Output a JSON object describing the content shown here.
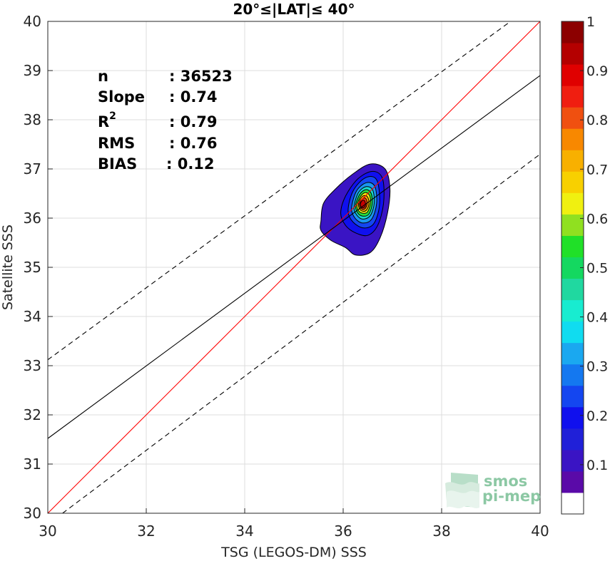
{
  "chart_data": {
    "type": "contour",
    "title": "20°≤|LAT|≤ 40°",
    "xlabel": "TSG (LEGOS-DM) SSS",
    "ylabel": "Satellite SSS",
    "xlim": [
      30,
      40
    ],
    "ylim": [
      30,
      40
    ],
    "xticks": [
      30,
      32,
      34,
      36,
      38,
      40
    ],
    "yticks": [
      30,
      31,
      32,
      33,
      34,
      35,
      36,
      37,
      38,
      39,
      40
    ],
    "grid": true,
    "stats": {
      "n_label": "n",
      "n_value": ": 36523",
      "slope_label": "Slope",
      "slope_value": ": 0.74",
      "r2_label": "R",
      "r2_sup": "2",
      "r2_value": ": 0.79",
      "rms_label": "RMS",
      "rms_value": ": 0.76",
      "bias_label": "BIAS",
      "bias_value": ": 0.12"
    },
    "lines": [
      {
        "role": "identity",
        "color": "#ff0000",
        "style": "solid",
        "points": [
          [
            30,
            30
          ],
          [
            40,
            40
          ]
        ]
      },
      {
        "role": "regression",
        "color": "#000000",
        "style": "solid",
        "points": [
          [
            30,
            31.52
          ],
          [
            40,
            38.9
          ]
        ]
      },
      {
        "role": "upper-bound",
        "color": "#000000",
        "style": "dashed",
        "points": [
          [
            30,
            33.12
          ],
          [
            39.4,
            40
          ]
        ]
      },
      {
        "role": "lower-bound",
        "color": "#000000",
        "style": "dashed",
        "points": [
          [
            30.3,
            30
          ],
          [
            40,
            37.3
          ]
        ]
      }
    ],
    "density": {
      "center": [
        36.4,
        36.3
      ],
      "levels": [
        {
          "level": 0.05,
          "color": "#3a14c4",
          "pts": [
            [
              35.55,
              35.95
            ],
            [
              35.6,
              36.3
            ],
            [
              35.85,
              36.6
            ],
            [
              36.2,
              36.9
            ],
            [
              36.55,
              37.1
            ],
            [
              36.85,
              37.0
            ],
            [
              36.95,
              36.6
            ],
            [
              36.9,
              36.1
            ],
            [
              36.75,
              35.6
            ],
            [
              36.55,
              35.3
            ],
            [
              36.25,
              35.25
            ],
            [
              36.05,
              35.4
            ],
            [
              35.75,
              35.55
            ],
            [
              35.55,
              35.75
            ]
          ]
        },
        {
          "level": 0.15,
          "color": "#1010ee",
          "pts": [
            [
              35.95,
              36.1
            ],
            [
              36.05,
              36.45
            ],
            [
              36.3,
              36.8
            ],
            [
              36.6,
              36.95
            ],
            [
              36.8,
              36.8
            ],
            [
              36.82,
              36.3
            ],
            [
              36.7,
              35.85
            ],
            [
              36.5,
              35.65
            ],
            [
              36.25,
              35.7
            ],
            [
              36.05,
              35.85
            ]
          ]
        },
        {
          "level": 0.25,
          "color": "#1446f0",
          "pts": [
            [
              36.1,
              36.15
            ],
            [
              36.2,
              36.55
            ],
            [
              36.45,
              36.82
            ],
            [
              36.68,
              36.78
            ],
            [
              36.74,
              36.3
            ],
            [
              36.63,
              35.9
            ],
            [
              36.42,
              35.8
            ],
            [
              36.2,
              35.92
            ]
          ]
        },
        {
          "level": 0.35,
          "color": "#1a96f0",
          "pts": [
            [
              36.17,
              36.2
            ],
            [
              36.27,
              36.55
            ],
            [
              36.47,
              36.72
            ],
            [
              36.64,
              36.65
            ],
            [
              36.68,
              36.3
            ],
            [
              36.58,
              35.98
            ],
            [
              36.4,
              35.9
            ],
            [
              36.24,
              36.0
            ]
          ]
        },
        {
          "level": 0.45,
          "color": "#18d8cc",
          "pts": [
            [
              36.22,
              36.22
            ],
            [
              36.31,
              36.52
            ],
            [
              36.47,
              36.64
            ],
            [
              36.6,
              36.57
            ],
            [
              36.63,
              36.3
            ],
            [
              36.55,
              36.05
            ],
            [
              36.4,
              35.98
            ],
            [
              36.28,
              36.06
            ]
          ]
        },
        {
          "level": 0.55,
          "color": "#28dc3c",
          "pts": [
            [
              36.25,
              36.25
            ],
            [
              36.34,
              36.49
            ],
            [
              36.47,
              36.58
            ],
            [
              36.57,
              36.5
            ],
            [
              36.59,
              36.28
            ],
            [
              36.52,
              36.08
            ],
            [
              36.4,
              36.04
            ],
            [
              36.3,
              36.1
            ]
          ]
        },
        {
          "level": 0.65,
          "color": "#f0f010",
          "pts": [
            [
              36.28,
              36.26
            ],
            [
              36.36,
              36.45
            ],
            [
              36.46,
              36.52
            ],
            [
              36.54,
              36.45
            ],
            [
              36.55,
              36.28
            ],
            [
              36.49,
              36.12
            ],
            [
              36.4,
              36.1
            ],
            [
              36.32,
              36.14
            ]
          ]
        },
        {
          "level": 0.75,
          "color": "#f5a000",
          "pts": [
            [
              36.31,
              36.28
            ],
            [
              36.37,
              36.42
            ],
            [
              36.45,
              36.46
            ],
            [
              36.51,
              36.4
            ],
            [
              36.52,
              36.27
            ],
            [
              36.47,
              36.16
            ],
            [
              36.4,
              36.14
            ],
            [
              36.34,
              36.18
            ]
          ]
        },
        {
          "level": 0.85,
          "color": "#f03c10",
          "pts": [
            [
              36.33,
              36.28
            ],
            [
              36.38,
              36.38
            ],
            [
              36.44,
              36.41
            ],
            [
              36.48,
              36.35
            ],
            [
              36.48,
              36.26
            ],
            [
              36.44,
              36.19
            ],
            [
              36.39,
              36.18
            ],
            [
              36.35,
              36.21
            ]
          ]
        },
        {
          "level": 0.95,
          "color": "#c80000",
          "pts": [
            [
              36.35,
              36.29
            ],
            [
              36.39,
              36.36
            ],
            [
              36.43,
              36.36
            ],
            [
              36.45,
              36.31
            ],
            [
              36.45,
              36.25
            ],
            [
              36.41,
              36.21
            ],
            [
              36.37,
              36.22
            ]
          ]
        }
      ]
    },
    "colorbar": {
      "ticks": [
        "0.1",
        "0.2",
        "0.3",
        "0.4",
        "0.5",
        "0.6",
        "0.7",
        "0.8",
        "0.9",
        "1"
      ],
      "range": [
        0,
        1
      ],
      "colors": [
        "#ffffff",
        "#5a0aa8",
        "#3a14c4",
        "#2020d8",
        "#1010ee",
        "#1446f0",
        "#1478f0",
        "#1aa8f0",
        "#10dcf0",
        "#18ecd0",
        "#20d8a0",
        "#14d860",
        "#20e028",
        "#90e020",
        "#f0f010",
        "#f8d000",
        "#f8b000",
        "#f88800",
        "#f05010",
        "#f01e10",
        "#e00000",
        "#b40000",
        "#8c0000"
      ]
    },
    "watermark": {
      "line1": "smos",
      "line2": "pi-mep"
    }
  }
}
